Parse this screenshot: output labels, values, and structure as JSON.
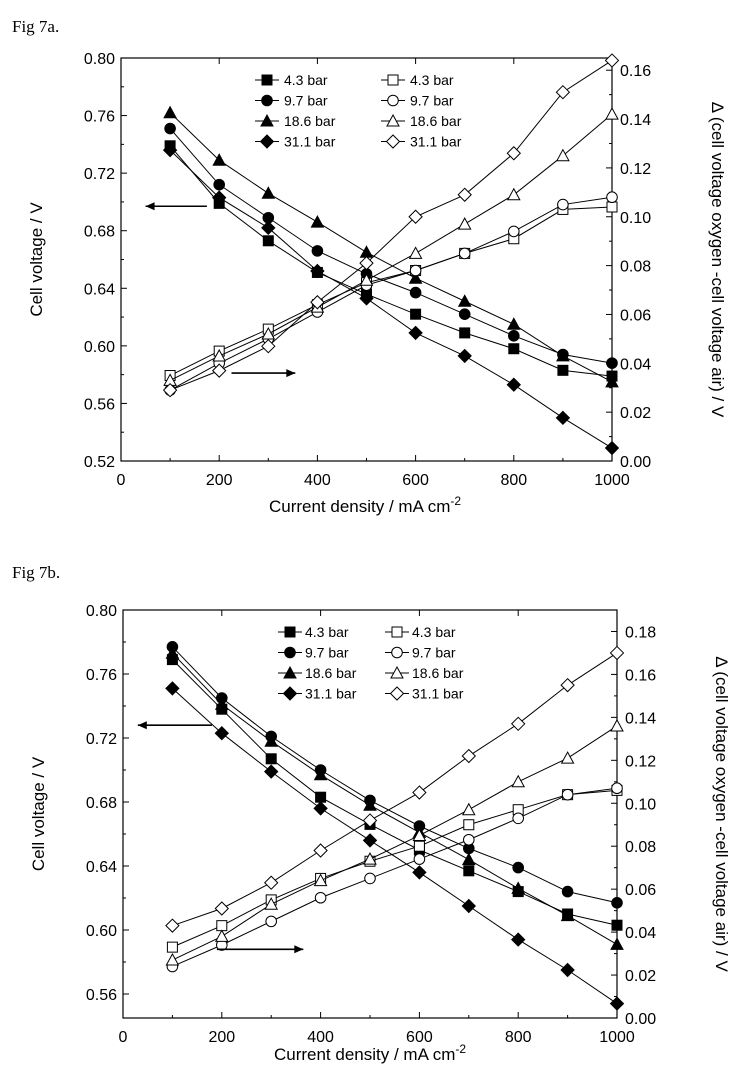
{
  "chart_data": [
    {
      "type": "line",
      "caption": "Fig 7a.",
      "xlabel": "Current density / mA cm",
      "xlabel_sup": "-2",
      "ylabel": "Cell voltage / V",
      "y2label": "Δ (cell voltage oxygen -cell voltage air) / V",
      "xlim": [
        0,
        1000
      ],
      "ylim": [
        0.52,
        0.8
      ],
      "y2lim": [
        0.0,
        0.165
      ],
      "xticks": [
        0,
        200,
        400,
        600,
        800,
        1000
      ],
      "yticks": [
        0.52,
        0.56,
        0.6,
        0.64,
        0.68,
        0.72,
        0.76,
        0.8
      ],
      "y2ticks": [
        0.0,
        0.02,
        0.04,
        0.06,
        0.08,
        0.1,
        0.12,
        0.14,
        0.16
      ],
      "ydecimals": 2,
      "y2decimals": 2,
      "legend_position": "top",
      "x": [
        100,
        200,
        300,
        400,
        500,
        600,
        700,
        800,
        900,
        1000
      ],
      "series": [
        {
          "name": "4.3 bar",
          "axis": "left",
          "marker": "square",
          "filled": true,
          "values": [
            0.739,
            0.699,
            0.673,
            0.651,
            0.636,
            0.622,
            0.609,
            0.598,
            0.583,
            0.579
          ]
        },
        {
          "name": "9.7 bar",
          "axis": "left",
          "marker": "circle",
          "filled": true,
          "values": [
            0.751,
            0.712,
            0.689,
            0.666,
            0.65,
            0.637,
            0.622,
            0.607,
            0.594,
            0.588
          ]
        },
        {
          "name": "18.6 bar",
          "axis": "left",
          "marker": "triangle",
          "filled": true,
          "values": [
            0.762,
            0.729,
            0.706,
            0.686,
            0.665,
            0.647,
            0.631,
            0.615,
            0.593,
            0.575
          ]
        },
        {
          "name": "31.1 bar",
          "axis": "left",
          "marker": "diamond",
          "filled": true,
          "values": [
            0.736,
            0.703,
            0.682,
            0.652,
            0.633,
            0.609,
            0.593,
            0.573,
            0.55,
            0.529
          ]
        },
        {
          "name": "4.3 bar",
          "axis": "right",
          "marker": "square",
          "filled": false,
          "values": [
            0.035,
            0.045,
            0.054,
            0.064,
            0.073,
            0.078,
            0.085,
            0.091,
            0.103,
            0.104
          ]
        },
        {
          "name": "9.7 bar",
          "axis": "right",
          "marker": "circle",
          "filled": false,
          "values": [
            0.029,
            0.04,
            0.05,
            0.061,
            0.072,
            0.078,
            0.085,
            0.094,
            0.105,
            0.108
          ]
        },
        {
          "name": "18.6 bar",
          "axis": "right",
          "marker": "triangle",
          "filled": false,
          "values": [
            0.033,
            0.043,
            0.052,
            0.063,
            0.074,
            0.085,
            0.097,
            0.109,
            0.125,
            0.142
          ]
        },
        {
          "name": "31.1 bar",
          "axis": "right",
          "marker": "diamond",
          "filled": false,
          "values": [
            0.029,
            0.037,
            0.047,
            0.065,
            0.081,
            0.1,
            0.109,
            0.126,
            0.151,
            0.164
          ]
        }
      ],
      "arrows": [
        {
          "direction": "left",
          "axis": "left",
          "x_from": 175,
          "x_to": 50,
          "y": 0.697
        },
        {
          "direction": "right",
          "axis": "right",
          "x_from": 225,
          "x_to": 355,
          "y": 0.036
        }
      ]
    },
    {
      "type": "line",
      "caption": "Fig 7b.",
      "xlabel": "Current density / mA cm",
      "xlabel_sup": "-2",
      "ylabel": "Cell voltage / V",
      "y2label": "Δ (cell voltage oxygen -cell voltage air) / V",
      "xlim": [
        0,
        1000
      ],
      "ylim": [
        0.545,
        0.8
      ],
      "y2lim": [
        0.0,
        0.19
      ],
      "xticks": [
        0,
        200,
        400,
        600,
        800,
        1000
      ],
      "yticks": [
        0.56,
        0.6,
        0.64,
        0.68,
        0.72,
        0.76,
        0.8
      ],
      "y2ticks": [
        0.0,
        0.02,
        0.04,
        0.06,
        0.08,
        0.1,
        0.12,
        0.14,
        0.16,
        0.18
      ],
      "ydecimals": 2,
      "y2decimals": 2,
      "legend_position": "top",
      "x": [
        100,
        200,
        300,
        400,
        500,
        600,
        700,
        800,
        900,
        1000
      ],
      "series": [
        {
          "name": "4.3 bar",
          "axis": "left",
          "marker": "square",
          "filled": true,
          "values": [
            0.769,
            0.738,
            0.707,
            0.683,
            0.666,
            0.65,
            0.637,
            0.624,
            0.61,
            0.603
          ]
        },
        {
          "name": "9.7 bar",
          "axis": "left",
          "marker": "circle",
          "filled": true,
          "values": [
            0.777,
            0.745,
            0.721,
            0.7,
            0.681,
            0.665,
            0.651,
            0.639,
            0.624,
            0.617
          ]
        },
        {
          "name": "18.6 bar",
          "axis": "left",
          "marker": "triangle",
          "filled": true,
          "values": [
            0.773,
            0.741,
            0.718,
            0.697,
            0.678,
            0.661,
            0.644,
            0.626,
            0.609,
            0.591
          ]
        },
        {
          "name": "31.1 bar",
          "axis": "left",
          "marker": "diamond",
          "filled": true,
          "values": [
            0.751,
            0.723,
            0.699,
            0.676,
            0.656,
            0.636,
            0.615,
            0.594,
            0.575,
            0.554
          ]
        },
        {
          "name": "4.3 bar",
          "axis": "right",
          "marker": "square",
          "filled": false,
          "values": [
            0.033,
            0.043,
            0.055,
            0.065,
            0.073,
            0.08,
            0.09,
            0.097,
            0.104,
            0.106
          ]
        },
        {
          "name": "9.7 bar",
          "axis": "right",
          "marker": "circle",
          "filled": false,
          "values": [
            0.024,
            0.034,
            0.045,
            0.056,
            0.065,
            0.074,
            0.083,
            0.093,
            0.104,
            0.107
          ]
        },
        {
          "name": "18.6 bar",
          "axis": "right",
          "marker": "triangle",
          "filled": false,
          "values": [
            0.027,
            0.038,
            0.053,
            0.064,
            0.074,
            0.085,
            0.097,
            0.11,
            0.121,
            0.136
          ]
        },
        {
          "name": "31.1 bar",
          "axis": "right",
          "marker": "diamond",
          "filled": false,
          "values": [
            0.043,
            0.051,
            0.063,
            0.078,
            0.092,
            0.105,
            0.122,
            0.137,
            0.155,
            0.17
          ]
        }
      ],
      "arrows": [
        {
          "direction": "left",
          "axis": "left",
          "x_from": 180,
          "x_to": 30,
          "y": 0.728
        },
        {
          "direction": "right",
          "axis": "right",
          "x_from": 190,
          "x_to": 365,
          "y": 0.032
        }
      ]
    }
  ]
}
